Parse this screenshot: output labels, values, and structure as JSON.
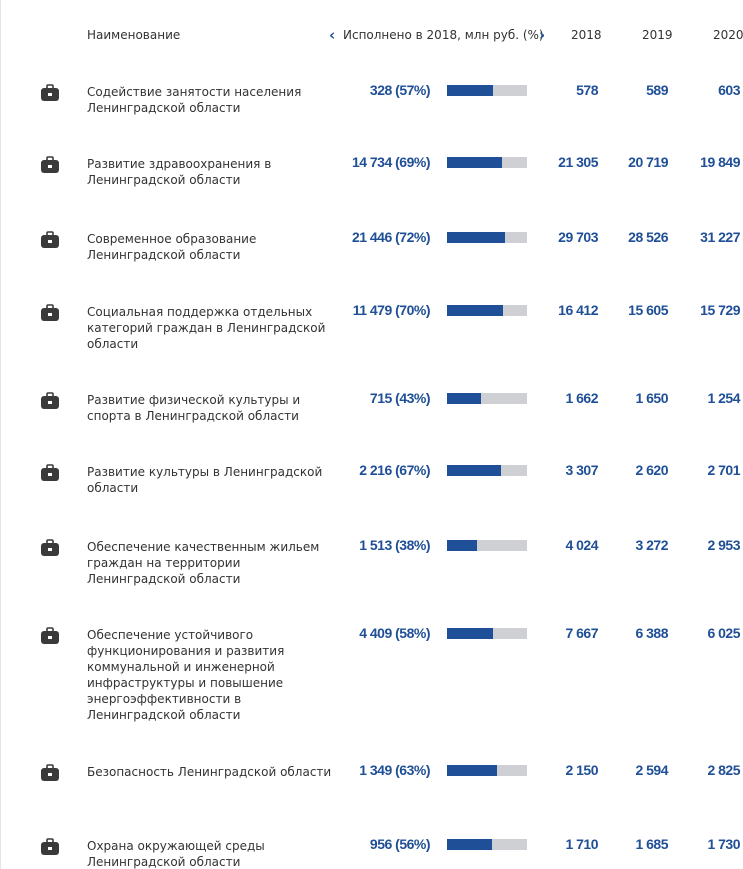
{
  "table": {
    "header": {
      "name": "Наименование",
      "executed": "Исполнено в 2018, млн руб. (%)",
      "prev": "‹",
      "next": "›",
      "years": [
        "2018",
        "2019",
        "2020"
      ]
    },
    "rows": [
      {
        "name": "Содействие занятости населения Ленинградской области",
        "executed": "328 (57%)",
        "percent": 57,
        "years": [
          "578",
          "589",
          "603"
        ]
      },
      {
        "name": "Развитие здравоохранения в Ленинградской области",
        "executed": "14 734 (69%)",
        "percent": 69,
        "years": [
          "21 305",
          "20 719",
          "19 849"
        ]
      },
      {
        "name": "Современное образование Ленинградской области",
        "executed": "21 446 (72%)",
        "percent": 72,
        "years": [
          "29 703",
          "28 526",
          "31 227"
        ]
      },
      {
        "name": "Социальная поддержка отдельных категорий граждан в Ленинградской области",
        "executed": "11 479 (70%)",
        "percent": 70,
        "years": [
          "16 412",
          "15 605",
          "15 729"
        ]
      },
      {
        "name": "Развитие физической культуры и спорта в Ленинградской области",
        "executed": "715 (43%)",
        "percent": 43,
        "years": [
          "1 662",
          "1 650",
          "1 254"
        ]
      },
      {
        "name": "Развитие культуры в Ленинградской области",
        "executed": "2 216 (67%)",
        "percent": 67,
        "years": [
          "3 307",
          "2 620",
          "2 701"
        ]
      },
      {
        "name": "Обеспечение качественным жильем граждан на территории Ленинградской области",
        "executed": "1 513 (38%)",
        "percent": 38,
        "years": [
          "4 024",
          "3 272",
          "2 953"
        ]
      },
      {
        "name": "Обеспечение устойчивого функционирования и развития коммунальной и инженерной инфраструктуры и повышение энергоэффективности в Ленинградской области",
        "executed": "4 409 (58%)",
        "percent": 58,
        "years": [
          "7 667",
          "6 388",
          "6 025"
        ]
      },
      {
        "name": "Безопасность Ленинградской области",
        "executed": "1 349 (63%)",
        "percent": 63,
        "years": [
          "2 150",
          "2 594",
          "2 825"
        ]
      },
      {
        "name": "Охрана окружающей среды Ленинградской области",
        "executed": "956 (56%)",
        "percent": 56,
        "years": [
          "1 710",
          "1 685",
          "1 730"
        ]
      }
    ]
  }
}
